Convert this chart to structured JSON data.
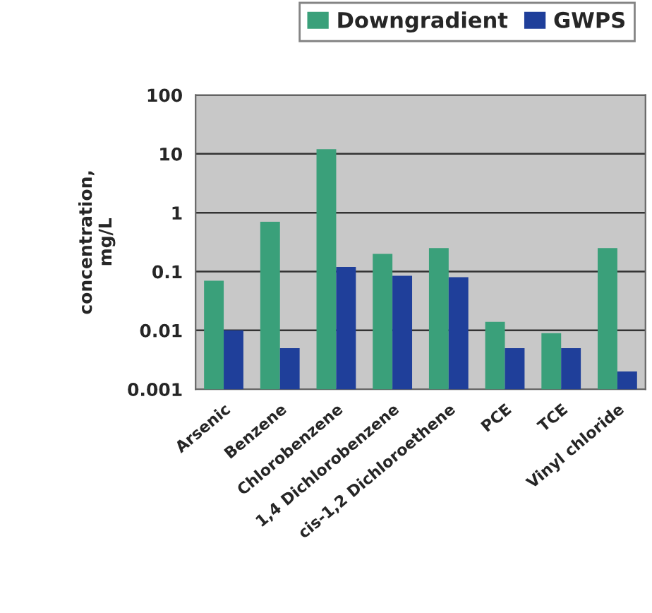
{
  "chart_data": {
    "type": "bar",
    "ylabel": "concentration,\nmg/L",
    "categories": [
      "Arsenic",
      "Benzene",
      "Chlorobenzene",
      "1,4 Dichlorobenzene",
      "cis-1,2 Dichloroethene",
      "PCE",
      "TCE",
      "Vinyl chloride"
    ],
    "series": [
      {
        "name": "Downgradient",
        "color": "#3aa07a",
        "values": [
          0.07,
          0.7,
          12,
          0.2,
          0.25,
          0.014,
          0.009,
          0.25
        ]
      },
      {
        "name": "GWPS",
        "color": "#1f3f9a",
        "values": [
          0.01,
          0.005,
          0.12,
          0.085,
          0.08,
          0.005,
          0.005,
          0.002
        ]
      }
    ],
    "log": true,
    "ylim": [
      0.001,
      100
    ],
    "yticks": [
      {
        "value": 0.001,
        "label": "0.001"
      },
      {
        "value": 0.01,
        "label": "0.01"
      },
      {
        "value": 0.1,
        "label": "0.1"
      },
      {
        "value": 1,
        "label": "1"
      },
      {
        "value": 10,
        "label": "10"
      },
      {
        "value": 100,
        "label": "100"
      }
    ],
    "grid": "y",
    "legend": "top right"
  }
}
